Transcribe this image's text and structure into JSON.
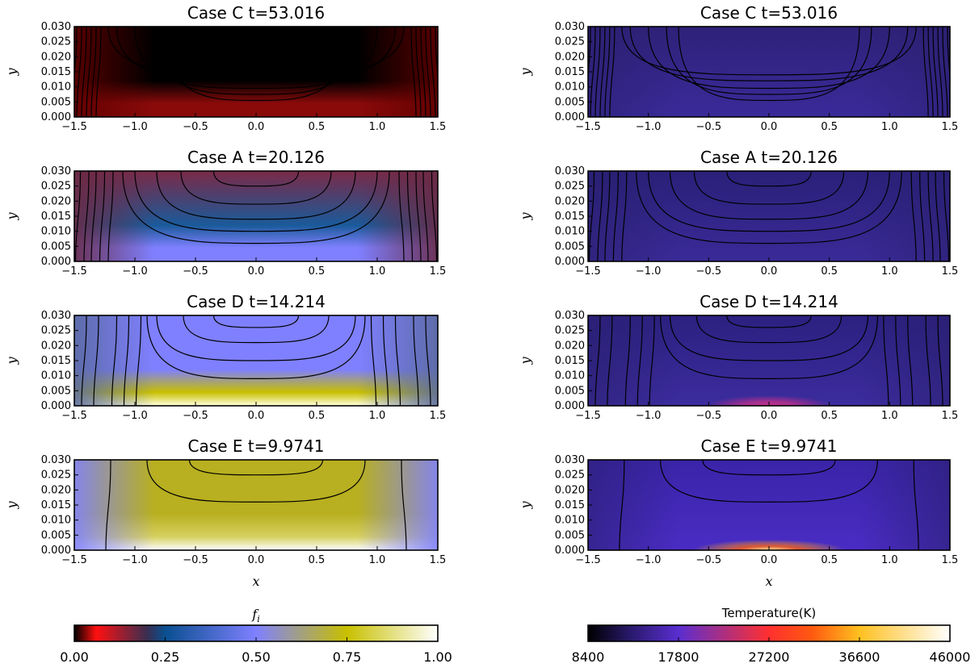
{
  "chart_data": [
    {
      "type": "heatmap",
      "title": "Case C  t=53.016",
      "xlabel": "",
      "ylabel": "y",
      "xlim": [
        -1.5,
        1.5
      ],
      "ylim": [
        0,
        0.03
      ],
      "xticks": [
        "−1.5",
        "−1.0",
        "−0.5",
        "0.0",
        "0.5",
        "1.0",
        "1.5"
      ],
      "yticks": [
        "0.000",
        "0.005",
        "0.010",
        "0.015",
        "0.020",
        "0.025",
        "0.030"
      ],
      "field": "f_i",
      "colormap": "fi",
      "pattern": "caseC"
    },
    {
      "type": "heatmap",
      "title": "Case C  t=53.016",
      "xlabel": "",
      "ylabel": "y",
      "xlim": [
        -1.5,
        1.5
      ],
      "ylim": [
        0,
        0.03
      ],
      "xticks": [
        "−1.5",
        "−1.0",
        "−0.5",
        "0.0",
        "0.5",
        "1.0",
        "1.5"
      ],
      "yticks": [
        "0.000",
        "0.005",
        "0.010",
        "0.015",
        "0.020",
        "0.025",
        "0.030"
      ],
      "field": "temperature",
      "colormap": "temp",
      "pattern": "caseC"
    },
    {
      "type": "heatmap",
      "title": "Case A  t=20.126",
      "xlabel": "",
      "ylabel": "y",
      "xlim": [
        -1.5,
        1.5
      ],
      "ylim": [
        0,
        0.03
      ],
      "xticks": [
        "−1.5",
        "−1.0",
        "−0.5",
        "0.0",
        "0.5",
        "1.0",
        "1.5"
      ],
      "yticks": [
        "0.000",
        "0.005",
        "0.010",
        "0.015",
        "0.020",
        "0.025",
        "0.030"
      ],
      "field": "f_i",
      "colormap": "fi",
      "pattern": "caseA"
    },
    {
      "type": "heatmap",
      "title": "Case A  t=20.126",
      "xlabel": "",
      "ylabel": "y",
      "xlim": [
        -1.5,
        1.5
      ],
      "ylim": [
        0,
        0.03
      ],
      "xticks": [
        "−1.5",
        "−1.0",
        "−0.5",
        "0.0",
        "0.5",
        "1.0",
        "1.5"
      ],
      "yticks": [
        "0.000",
        "0.005",
        "0.010",
        "0.015",
        "0.020",
        "0.025",
        "0.030"
      ],
      "field": "temperature",
      "colormap": "temp",
      "pattern": "caseA"
    },
    {
      "type": "heatmap",
      "title": "Case D  t=14.214",
      "xlabel": "",
      "ylabel": "y",
      "xlim": [
        -1.5,
        1.5
      ],
      "ylim": [
        0,
        0.03
      ],
      "xticks": [
        "−1.5",
        "−1.0",
        "−0.5",
        "0.0",
        "0.5",
        "1.0",
        "1.5"
      ],
      "yticks": [
        "0.000",
        "0.005",
        "0.010",
        "0.015",
        "0.020",
        "0.025",
        "0.030"
      ],
      "field": "f_i",
      "colormap": "fi",
      "pattern": "caseD"
    },
    {
      "type": "heatmap",
      "title": "Case D  t=14.214",
      "xlabel": "",
      "ylabel": "y",
      "xlim": [
        -1.5,
        1.5
      ],
      "ylim": [
        0,
        0.03
      ],
      "xticks": [
        "−1.5",
        "−1.0",
        "−0.5",
        "0.0",
        "0.5",
        "1.0",
        "1.5"
      ],
      "yticks": [
        "0.000",
        "0.005",
        "0.010",
        "0.015",
        "0.020",
        "0.025",
        "0.030"
      ],
      "field": "temperature",
      "colormap": "temp",
      "pattern": "caseD"
    },
    {
      "type": "heatmap",
      "title": "Case E  t=9.9741",
      "xlabel": "x",
      "ylabel": "y",
      "xlim": [
        -1.5,
        1.5
      ],
      "ylim": [
        0,
        0.03
      ],
      "xticks": [
        "−1.5",
        "−1.0",
        "−0.5",
        "0.0",
        "0.5",
        "1.0",
        "1.5"
      ],
      "yticks": [
        "0.000",
        "0.005",
        "0.010",
        "0.015",
        "0.020",
        "0.025",
        "0.030"
      ],
      "field": "f_i",
      "colormap": "fi",
      "pattern": "caseE"
    },
    {
      "type": "heatmap",
      "title": "Case E  t=9.9741",
      "xlabel": "x",
      "ylabel": "y",
      "xlim": [
        -1.5,
        1.5
      ],
      "ylim": [
        0,
        0.03
      ],
      "xticks": [
        "−1.5",
        "−1.0",
        "−0.5",
        "0.0",
        "0.5",
        "1.0",
        "1.5"
      ],
      "yticks": [
        "0.000",
        "0.005",
        "0.010",
        "0.015",
        "0.020",
        "0.025",
        "0.030"
      ],
      "field": "temperature",
      "colormap": "temp",
      "pattern": "caseE"
    }
  ],
  "colorbars": [
    {
      "label": "f",
      "label_sub": "i",
      "ticks": [
        "0.00",
        "0.25",
        "0.50",
        "0.75",
        "1.00"
      ],
      "range": [
        0,
        1
      ],
      "stops": [
        [
          0,
          "#000000"
        ],
        [
          0.06,
          "#ff1010"
        ],
        [
          0.2,
          "#3a2e50"
        ],
        [
          0.25,
          "#0a4f90"
        ],
        [
          0.5,
          "#7f80ff"
        ],
        [
          0.75,
          "#c8c000"
        ],
        [
          1,
          "#ffffff"
        ]
      ]
    },
    {
      "label": "Temperature(K)",
      "ticks": [
        "8400",
        "17800",
        "27200",
        "36600",
        "46000"
      ],
      "range": [
        8400,
        46000
      ],
      "stops": [
        [
          0,
          "#000000"
        ],
        [
          0.12,
          "#2a1a6e"
        ],
        [
          0.25,
          "#5a2ed0"
        ],
        [
          0.5,
          "#ff3030"
        ],
        [
          0.62,
          "#ff5a10"
        ],
        [
          0.75,
          "#ffc020"
        ],
        [
          1,
          "#ffffff"
        ]
      ]
    }
  ]
}
